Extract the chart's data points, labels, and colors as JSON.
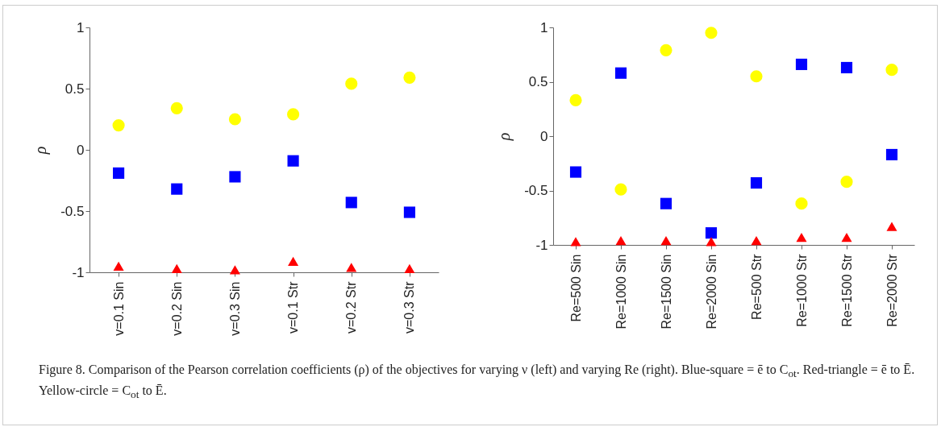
{
  "chart_data": [
    {
      "type": "scatter",
      "ylabel": "ρ",
      "categories": [
        "v=0.1 Sin",
        "v=0.2 Sin",
        "v=0.3 Sin",
        "v=0.1 Str",
        "v=0.2 Str",
        "v=0.3 Str"
      ],
      "ylim": [
        -1,
        1
      ],
      "yticks": [
        -1,
        -0.5,
        0,
        0.5,
        1
      ],
      "grid": false,
      "legend": false,
      "series": [
        {
          "color": "#ffff00",
          "marker": "circle",
          "values": [
            0.2,
            0.34,
            0.25,
            0.29,
            0.54,
            0.59
          ]
        },
        {
          "color": "#0000ff",
          "marker": "square",
          "values": [
            -0.19,
            -0.32,
            -0.22,
            -0.09,
            -0.43,
            -0.51
          ]
        },
        {
          "color": "#ff0000",
          "marker": "triangle",
          "values": [
            -0.95,
            -0.97,
            -0.98,
            -0.91,
            -0.96,
            -0.97
          ]
        }
      ],
      "annotations": [
        "Figure 8.  Comparison of the Pearson correlation coefficients (ρ) of the objectives for varying ν (left) and varying Re (right). Blue-square = ē to C$_{ot}$. Red-triangle = ē to Ē. Yellow-circle = C$_{ot}$ to Ē."
      ]
    },
    {
      "type": "scatter",
      "ylabel": "ρ",
      "categories": [
        "Re=500 Sin",
        "Re=1000 Sin",
        "Re=1500 Sin",
        "Re=2000 Sin",
        "Re=500 Str",
        "Re=1000 Str",
        "Re=1500 Str",
        "Re=2000 Str"
      ],
      "ylim": [
        -1,
        1
      ],
      "yticks": [
        -1,
        -0.5,
        0,
        0.5,
        1
      ],
      "grid": false,
      "legend": false,
      "series": [
        {
          "color": "#ffff00",
          "marker": "circle",
          "values": [
            0.33,
            -0.49,
            0.79,
            0.95,
            0.55,
            -0.62,
            -0.42,
            0.61
          ]
        },
        {
          "color": "#0000ff",
          "marker": "square",
          "values": [
            -0.33,
            0.58,
            -0.62,
            -0.89,
            -0.43,
            0.66,
            0.63,
            -0.17
          ]
        },
        {
          "color": "#ff0000",
          "marker": "triangle",
          "values": [
            -0.97,
            -0.96,
            -0.96,
            -0.97,
            -0.96,
            -0.93,
            -0.93,
            -0.83
          ]
        }
      ]
    }
  ]
}
